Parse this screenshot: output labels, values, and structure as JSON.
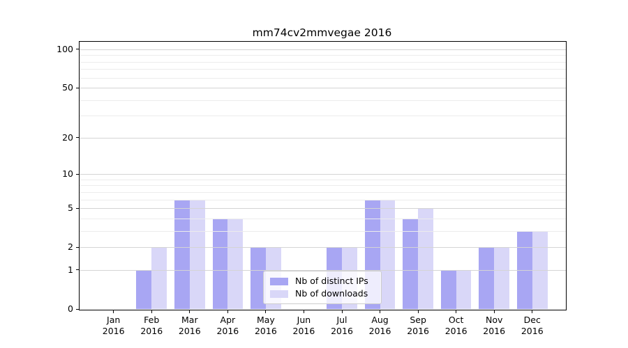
{
  "chart_data": {
    "type": "bar",
    "title": "mm74cv2mmvegae 2016",
    "categories": [
      "Jan",
      "Feb",
      "Mar",
      "Apr",
      "May",
      "Jun",
      "Jul",
      "Aug",
      "Sep",
      "Oct",
      "Nov",
      "Dec"
    ],
    "category_year": "2016",
    "series": [
      {
        "name": "Nb of distinct IPs",
        "color": "#a8a6f3",
        "values": [
          0,
          1,
          6,
          4,
          2,
          0,
          2,
          6,
          4,
          1,
          2,
          3
        ]
      },
      {
        "name": "Nb of downloads",
        "color": "#d9d7f8",
        "values": [
          0,
          2,
          6,
          4,
          2,
          0,
          2,
          6,
          5,
          1,
          2,
          3
        ]
      }
    ],
    "xlabel": "",
    "ylabel": "",
    "yscale": "log1p",
    "ylim": [
      0,
      116
    ],
    "yticks": [
      0,
      1,
      2,
      5,
      10,
      20,
      50,
      100
    ],
    "yticks_minor": [
      3,
      4,
      6,
      7,
      8,
      9,
      30,
      40,
      60,
      70,
      80,
      90
    ],
    "grid": "horizontal major+minor, drawn above bars",
    "legend_position": "lower center"
  },
  "style": {
    "background": "#ffffff",
    "spine_color": "#000000",
    "major_grid_color": "#d4d4d4",
    "minor_grid_color": "#ececec",
    "text_color": "#000000",
    "legend_border_color": "#cccccc"
  }
}
